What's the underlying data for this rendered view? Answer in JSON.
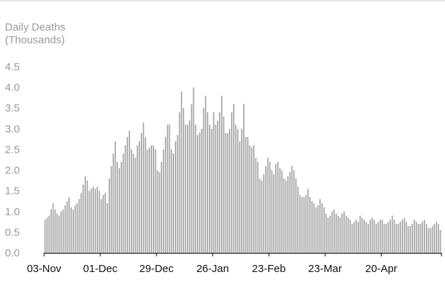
{
  "chart_data": {
    "type": "bar",
    "title": "",
    "ylabel_lines": [
      "Daily Deaths",
      "(Thousands)"
    ],
    "xlabel": "",
    "ylim": [
      0,
      4.5
    ],
    "yticks": [
      "0.0",
      "0.5",
      "1.0",
      "1.5",
      "2.0",
      "2.5",
      "3.0",
      "3.5",
      "4.0",
      "4.5"
    ],
    "xticks": [
      {
        "label": "03-Nov",
        "index": 0
      },
      {
        "label": "01-Dec",
        "index": 28
      },
      {
        "label": "29-Dec",
        "index": 56
      },
      {
        "label": "26-Jan",
        "index": 84
      },
      {
        "label": "23-Feb",
        "index": 112
      },
      {
        "label": "23-Mar",
        "index": 140
      },
      {
        "label": "20-Apr",
        "index": 168
      }
    ],
    "bar_color": "#a6a6a6",
    "grid": false,
    "series": [
      {
        "values": [
          0.8,
          0.85,
          0.9,
          1.05,
          1.2,
          1.05,
          0.95,
          0.9,
          1.0,
          1.05,
          1.15,
          1.25,
          1.35,
          1.1,
          1.05,
          1.15,
          1.2,
          1.3,
          1.45,
          1.65,
          1.85,
          1.75,
          1.5,
          1.55,
          1.6,
          1.55,
          1.6,
          1.5,
          1.3,
          1.4,
          1.45,
          1.2,
          1.8,
          2.1,
          2.4,
          2.7,
          2.2,
          2.05,
          2.2,
          2.4,
          2.6,
          2.8,
          2.95,
          2.5,
          2.4,
          2.3,
          2.6,
          2.7,
          2.9,
          3.15,
          2.8,
          2.5,
          2.55,
          2.6,
          2.6,
          2.5,
          2.0,
          1.95,
          2.2,
          2.5,
          2.8,
          3.1,
          3.1,
          2.5,
          2.4,
          2.7,
          2.85,
          3.4,
          3.9,
          3.5,
          3.1,
          3.1,
          3.2,
          3.6,
          4.0,
          3.1,
          2.85,
          2.9,
          3.0,
          3.5,
          3.8,
          3.4,
          3.1,
          3.0,
          3.4,
          3.1,
          3.2,
          3.4,
          3.8,
          3.3,
          2.9,
          2.9,
          3.0,
          3.4,
          3.6,
          3.1,
          3.0,
          2.7,
          3.0,
          3.6,
          2.8,
          2.8,
          2.6,
          2.55,
          2.6,
          2.3,
          2.2,
          1.8,
          1.75,
          1.9,
          2.1,
          2.3,
          2.2,
          2.0,
          1.9,
          2.15,
          2.2,
          2.05,
          2.0,
          1.8,
          1.75,
          1.85,
          1.95,
          2.1,
          2.0,
          1.8,
          1.6,
          1.4,
          1.35,
          1.35,
          1.4,
          1.55,
          1.35,
          1.25,
          1.2,
          1.1,
          1.15,
          1.3,
          1.2,
          1.1,
          0.95,
          0.85,
          0.9,
          1.0,
          1.05,
          0.95,
          0.9,
          0.85,
          0.95,
          1.0,
          0.9,
          0.85,
          0.8,
          0.7,
          0.75,
          0.8,
          0.75,
          0.9,
          0.85,
          0.8,
          0.75,
          0.7,
          0.8,
          0.85,
          0.8,
          0.7,
          0.75,
          0.8,
          0.8,
          0.7,
          0.7,
          0.75,
          0.8,
          0.9,
          0.8,
          0.7,
          0.7,
          0.75,
          0.8,
          0.85,
          0.75,
          0.65,
          0.65,
          0.7,
          0.8,
          0.75,
          0.7,
          0.7,
          0.75,
          0.8,
          0.7,
          0.6,
          0.6,
          0.65,
          0.7,
          0.75,
          0.7,
          0.55
        ]
      }
    ]
  }
}
